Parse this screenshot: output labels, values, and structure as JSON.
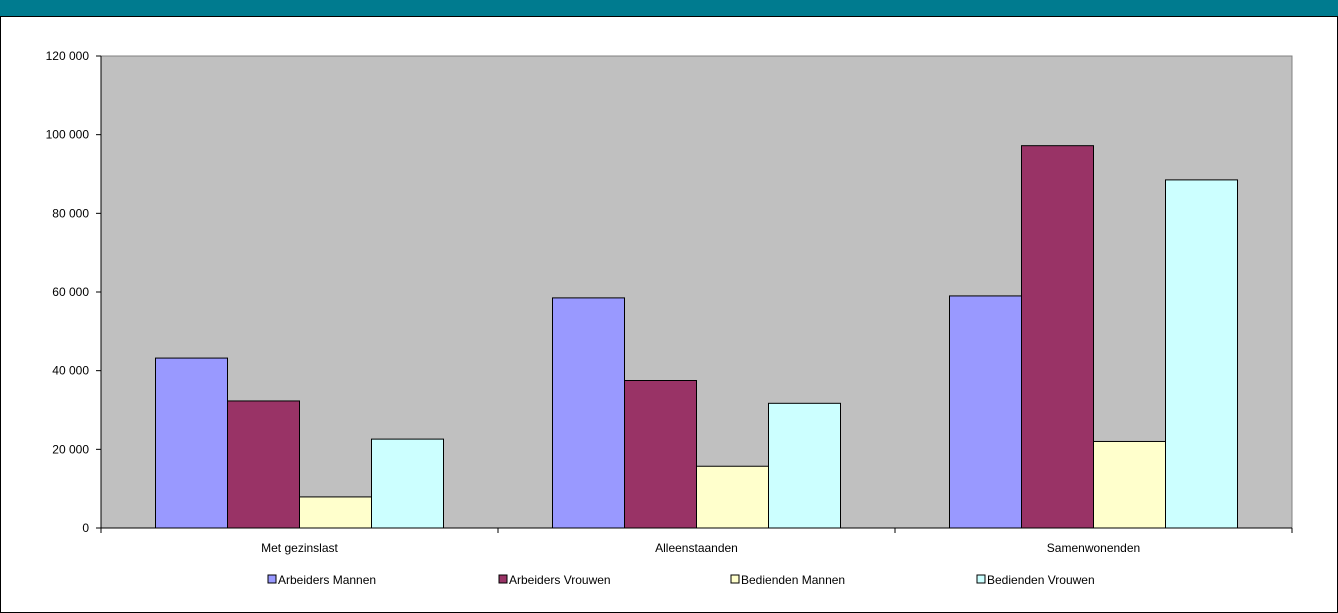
{
  "header": {
    "color": "#007b8f"
  },
  "plot": {
    "background": "#c0c0c0"
  },
  "chart_data": {
    "type": "bar",
    "categories": [
      "Met gezinslast",
      "Alleenstaanden",
      "Samenwonenden"
    ],
    "series": [
      {
        "name": "Arbeiders Mannen",
        "color": "#9999ff",
        "values": [
          43200,
          58500,
          59000
        ]
      },
      {
        "name": "Arbeiders Vrouwen",
        "color": "#993366",
        "values": [
          32300,
          37500,
          97200
        ]
      },
      {
        "name": "Bedienden Mannen",
        "color": "#ffffcc",
        "values": [
          7900,
          15700,
          22000
        ]
      },
      {
        "name": "Bedienden Vrouwen",
        "color": "#ccffff",
        "values": [
          22600,
          31700,
          88500
        ]
      }
    ],
    "ylim": [
      0,
      120000
    ],
    "yticks": [
      0,
      20000,
      40000,
      60000,
      80000,
      100000,
      120000
    ],
    "ytick_labels": [
      "0",
      "20 000",
      "40 000",
      "60 000",
      "80 000",
      "100 000",
      "120 000"
    ],
    "grid": false,
    "legend_position": "bottom"
  }
}
